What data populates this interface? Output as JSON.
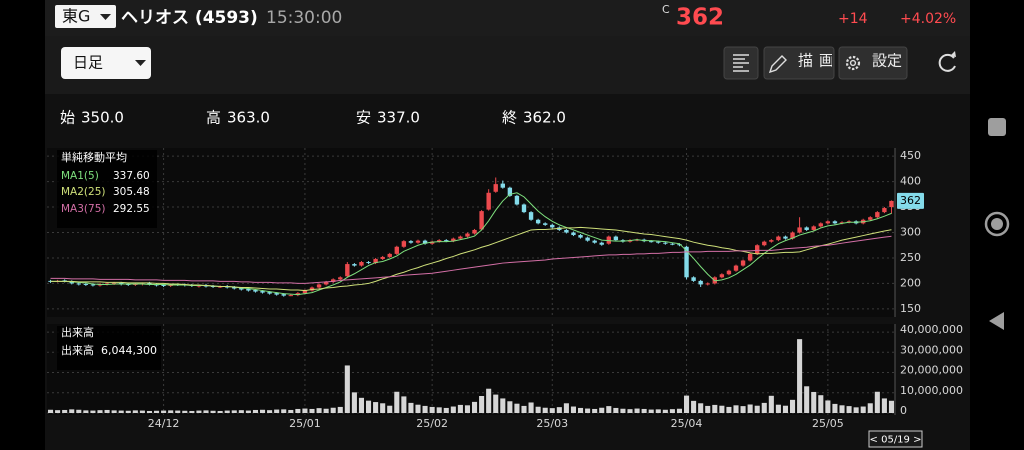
{
  "header": {
    "market": "東G",
    "name": "ヘリオス (4593)",
    "time": "15:30:00",
    "price_flag": "C",
    "price": 362,
    "change": "+14",
    "change_pct": "+4.02%"
  },
  "toolbar": {
    "period": "日足",
    "draw": "描画",
    "settings": "設定"
  },
  "ohlc_summary": [
    {
      "label": "始",
      "value": "350.0"
    },
    {
      "label": "高",
      "value": "363.0"
    },
    {
      "label": "安",
      "value": "337.0"
    },
    {
      "label": "終",
      "value": "362.0"
    }
  ],
  "chart_data": {
    "type": "candlestick",
    "categories": [
      null,
      null,
      null,
      null,
      null,
      null,
      null,
      null,
      null,
      null,
      null,
      null,
      null,
      null,
      null,
      null,
      "24/12",
      null,
      null,
      null,
      null,
      null,
      null,
      null,
      null,
      null,
      null,
      null,
      null,
      null,
      null,
      null,
      null,
      null,
      null,
      null,
      "25/01",
      null,
      null,
      null,
      null,
      null,
      null,
      null,
      null,
      null,
      null,
      null,
      null,
      null,
      null,
      null,
      null,
      null,
      "25/02",
      null,
      null,
      null,
      null,
      null,
      null,
      null,
      null,
      null,
      null,
      null,
      null,
      null,
      null,
      null,
      null,
      "25/03",
      null,
      null,
      null,
      null,
      null,
      null,
      null,
      null,
      null,
      null,
      null,
      null,
      null,
      null,
      null,
      null,
      null,
      null,
      "25/04",
      null,
      null,
      null,
      null,
      null,
      null,
      null,
      null,
      null,
      null,
      null,
      null,
      null,
      null,
      null,
      null,
      null,
      null,
      null,
      "25/05",
      null,
      null,
      null,
      null,
      null,
      null,
      null,
      null,
      null
    ],
    "open": [
      205,
      204,
      206,
      204,
      200,
      199,
      198,
      196,
      198,
      199,
      201,
      199,
      197,
      198,
      201,
      198,
      197,
      195,
      198,
      198,
      197,
      194,
      197,
      195,
      193,
      195,
      193,
      191,
      189,
      187,
      185,
      183,
      181,
      179,
      177,
      177,
      181,
      186,
      192,
      198,
      203,
      208,
      214,
      238,
      235,
      242,
      240,
      248,
      252,
      258,
      272,
      283,
      280,
      284,
      278,
      282,
      285,
      283,
      288,
      292,
      298,
      306,
      345,
      380,
      396,
      388,
      372,
      355,
      340,
      325,
      318,
      315,
      310,
      305,
      300,
      295,
      290,
      284,
      280,
      278,
      292,
      285,
      282,
      285,
      286,
      283,
      282,
      280,
      278,
      277,
      272,
      212,
      205,
      198,
      200,
      212,
      218,
      225,
      235,
      245,
      258,
      275,
      282,
      285,
      292,
      288,
      300,
      310,
      305,
      312,
      318,
      322,
      318,
      320,
      322,
      318,
      325,
      330,
      340,
      350
    ],
    "high": [
      207,
      207,
      208,
      206,
      202,
      201,
      200,
      201,
      202,
      203,
      203,
      201,
      201,
      202,
      203,
      200,
      199,
      200,
      200,
      200,
      199,
      198,
      199,
      197,
      196,
      197,
      195,
      193,
      191,
      189,
      187,
      185,
      183,
      181,
      179,
      183,
      188,
      194,
      200,
      205,
      210,
      214,
      242,
      240,
      244,
      244,
      250,
      254,
      260,
      274,
      285,
      285,
      286,
      286,
      284,
      287,
      287,
      290,
      294,
      300,
      307,
      344,
      385,
      408,
      402,
      390,
      374,
      357,
      342,
      327,
      320,
      317,
      312,
      307,
      302,
      297,
      292,
      286,
      282,
      294,
      294,
      287,
      287,
      288,
      288,
      285,
      284,
      282,
      280,
      279,
      274,
      214,
      207,
      202,
      214,
      220,
      227,
      237,
      247,
      260,
      277,
      284,
      287,
      294,
      294,
      302,
      330,
      312,
      314,
      320,
      324,
      324,
      322,
      324,
      324,
      327,
      332,
      342,
      350,
      363
    ],
    "low": [
      201,
      202,
      202,
      198,
      196,
      195,
      194,
      194,
      196,
      197,
      196,
      195,
      195,
      196,
      196,
      194,
      193,
      193,
      195,
      194,
      193,
      192,
      192,
      191,
      191,
      190,
      188,
      186,
      184,
      182,
      180,
      178,
      176,
      174,
      175,
      175,
      179,
      184,
      190,
      196,
      201,
      206,
      212,
      233,
      233,
      238,
      238,
      246,
      250,
      256,
      270,
      278,
      278,
      276,
      276,
      280,
      281,
      281,
      286,
      290,
      296,
      304,
      343,
      378,
      386,
      370,
      353,
      338,
      323,
      316,
      313,
      308,
      303,
      298,
      293,
      288,
      282,
      278,
      274,
      276,
      283,
      280,
      280,
      283,
      281,
      280,
      278,
      276,
      275,
      273,
      208,
      203,
      193,
      196,
      198,
      210,
      216,
      223,
      233,
      243,
      256,
      273,
      280,
      283,
      286,
      286,
      298,
      303,
      303,
      310,
      316,
      316,
      316,
      318,
      316,
      316,
      323,
      328,
      338,
      337
    ],
    "close": [
      203,
      205,
      204,
      200,
      198,
      197,
      196,
      199,
      200,
      201,
      198,
      197,
      199,
      200,
      198,
      196,
      195,
      198,
      197,
      196,
      195,
      196,
      194,
      193,
      194,
      192,
      190,
      188,
      186,
      184,
      182,
      180,
      178,
      176,
      177,
      181,
      186,
      192,
      198,
      203,
      208,
      212,
      238,
      235,
      242,
      240,
      248,
      252,
      258,
      272,
      283,
      280,
      284,
      278,
      282,
      285,
      283,
      288,
      292,
      298,
      305,
      342,
      378,
      395,
      388,
      372,
      355,
      340,
      325,
      318,
      315,
      310,
      305,
      300,
      295,
      290,
      284,
      280,
      276,
      292,
      285,
      282,
      285,
      286,
      283,
      282,
      280,
      278,
      277,
      275,
      212,
      205,
      198,
      200,
      212,
      218,
      225,
      235,
      245,
      258,
      275,
      282,
      285,
      292,
      288,
      300,
      310,
      305,
      312,
      318,
      322,
      318,
      320,
      322,
      318,
      325,
      330,
      340,
      348,
      362
    ],
    "up_color": "#ec4a4e",
    "down_color": "#84dbea",
    "ylim": [
      138,
      462
    ],
    "yticks": [
      150,
      200,
      250,
      300,
      350,
      400,
      450
    ],
    "grid": true,
    "ma_title": "単純移動平均",
    "ma_series": [
      {
        "name": "MA1(5)",
        "color": "#7ee07e",
        "current_label": "337.60",
        "values": [
          204,
          204,
          204,
          203,
          202,
          201,
          199,
          198,
          198,
          199,
          199,
          199,
          199,
          199,
          198,
          198,
          198,
          197,
          197,
          197,
          196,
          196,
          196,
          195,
          194,
          194,
          193,
          191,
          190,
          188,
          186,
          184,
          182,
          180,
          179,
          178,
          180,
          182,
          187,
          192,
          197,
          203,
          212,
          219,
          227,
          235,
          241,
          243,
          248,
          254,
          263,
          269,
          275,
          279,
          281,
          282,
          282,
          283,
          286,
          289,
          293,
          305,
          323,
          344,
          362,
          375,
          378,
          370,
          356,
          342,
          331,
          322,
          315,
          310,
          305,
          300,
          295,
          290,
          285,
          284,
          283,
          283,
          284,
          286,
          284,
          284,
          283,
          282,
          280,
          278,
          264,
          249,
          233,
          218,
          205,
          207,
          211,
          218,
          227,
          236,
          248,
          259,
          269,
          278,
          284,
          289,
          295,
          299,
          303,
          309,
          313,
          315,
          318,
          320,
          320,
          321,
          323,
          327,
          332,
          337.6
        ]
      },
      {
        "name": "MA2(25)",
        "color": "#cfe07a",
        "current_label": "305.48",
        "values": [
          204,
          204,
          204,
          204,
          203,
          203,
          203,
          203,
          202,
          202,
          202,
          201,
          201,
          201,
          201,
          200,
          200,
          199,
          199,
          198,
          197,
          197,
          196,
          195,
          194,
          194,
          193,
          192,
          192,
          191,
          190,
          189,
          189,
          188,
          187,
          187,
          186,
          188,
          189,
          191,
          192,
          194,
          195,
          197,
          198,
          200,
          204,
          209,
          213,
          218,
          222,
          227,
          231,
          236,
          240,
          244,
          249,
          253,
          258,
          262,
          266,
          271,
          275,
          280,
          285,
          290,
          295,
          300,
          305,
          306,
          306,
          307,
          308,
          309,
          309,
          310,
          309,
          308,
          307,
          306,
          305,
          303,
          301,
          299,
          297,
          296,
          294,
          292,
          290,
          288,
          285,
          281,
          278,
          275,
          273,
          270,
          268,
          265,
          263,
          260,
          258,
          259,
          259,
          260,
          261,
          261,
          262,
          266,
          270,
          274,
          277,
          281,
          285,
          288,
          291,
          294,
          297,
          300,
          303,
          305.48
        ]
      },
      {
        "name": "MA3(75)",
        "color": "#d36fa6",
        "current_label": "292.55",
        "values": [
          210,
          210,
          210,
          209,
          209,
          209,
          209,
          208,
          208,
          208,
          208,
          208,
          207,
          207,
          207,
          207,
          206,
          206,
          206,
          206,
          205,
          205,
          205,
          205,
          204,
          204,
          204,
          203,
          203,
          202,
          202,
          202,
          201,
          201,
          201,
          200,
          200,
          201,
          202,
          203,
          204,
          206,
          207,
          208,
          209,
          210,
          211,
          212,
          213,
          214,
          216,
          217,
          218,
          219,
          220,
          222,
          224,
          226,
          228,
          230,
          232,
          234,
          236,
          238,
          240,
          241,
          242,
          243,
          244,
          245,
          246,
          248,
          249,
          250,
          251,
          252,
          253,
          254,
          255,
          256,
          256,
          257,
          257,
          258,
          258,
          259,
          259,
          260,
          261,
          261,
          262,
          262,
          262,
          263,
          263,
          263,
          263,
          264,
          264,
          264,
          265,
          265,
          265,
          266,
          268,
          269,
          270,
          271,
          273,
          274,
          275,
          277,
          279,
          281,
          283,
          285,
          287,
          289,
          291,
          292.55
        ]
      }
    ],
    "volume": {
      "title": "出来高",
      "series_name": "出来高",
      "current_label": "6,044,300",
      "color": "#d6d6d6",
      "values": [
        1600000,
        1400000,
        1500000,
        1800000,
        1600000,
        1300000,
        1200000,
        1400000,
        1500000,
        1300000,
        1200000,
        1100000,
        1300000,
        1200000,
        1000000,
        1100000,
        1200000,
        1300000,
        1200000,
        1100000,
        1000000,
        1200000,
        1300000,
        1100000,
        1000000,
        1200000,
        1300000,
        1400000,
        1200000,
        1500000,
        1600000,
        1400000,
        1700000,
        1800000,
        1500000,
        2000000,
        2200000,
        2000000,
        2400000,
        2100000,
        2600000,
        3000000,
        23500000,
        10200000,
        7500000,
        6100000,
        5400000,
        4800000,
        3600000,
        10500000,
        8200000,
        5000000,
        4100000,
        3500000,
        3000000,
        2800000,
        2500000,
        3200000,
        4000000,
        3800000,
        5500000,
        8400000,
        12000000,
        9100000,
        7200000,
        5800000,
        4600000,
        3500000,
        5200000,
        3100000,
        2600000,
        2400000,
        2900000,
        4800000,
        3200000,
        2500000,
        2200000,
        2000000,
        2600000,
        3400000,
        2500000,
        2100000,
        1900000,
        2200000,
        2000000,
        1700000,
        1800000,
        1600000,
        1900000,
        2100000,
        8600000,
        6000000,
        4800000,
        3500000,
        4000000,
        3600000,
        3000000,
        3800000,
        3400000,
        4200000,
        3600000,
        5000000,
        8500000,
        4100000,
        3600000,
        6500000,
        36500000,
        13200000,
        10400000,
        8800000,
        6200000,
        4500000,
        3800000,
        3400000,
        2800000,
        3200000,
        4800000,
        10500000,
        7200000,
        6044300
      ],
      "ylim": [
        0,
        43000000
      ],
      "yticks": [
        0,
        {
          "value": 10000000,
          "label": "10,000,000"
        },
        {
          "value": 20000000,
          "label": "20,000,000"
        },
        {
          "value": 30000000,
          "label": "30,000,000"
        },
        {
          "value": 40000000,
          "label": "40,000,000"
        }
      ]
    },
    "cursor_label": "< 05/19 >"
  }
}
